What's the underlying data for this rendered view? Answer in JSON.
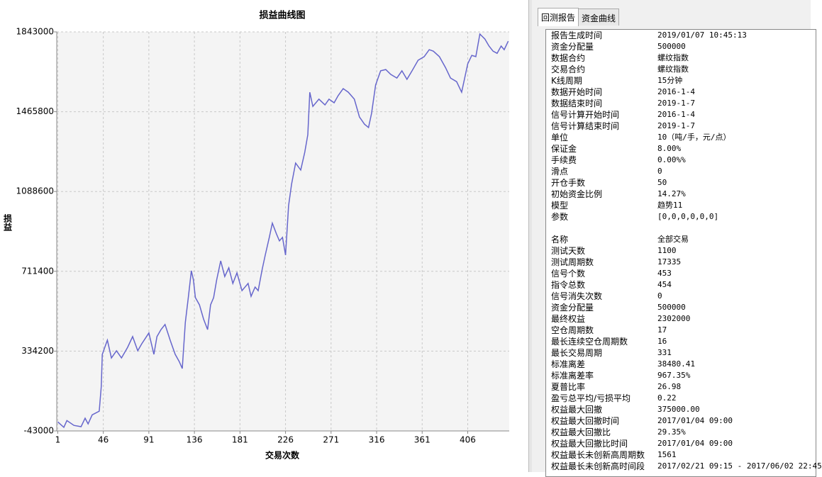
{
  "chart_data": {
    "type": "line",
    "title": "损益曲线图",
    "ylabel": "损益",
    "xlabel": "交易次数",
    "color": "#6666cc",
    "grid": true,
    "xlim": [
      0,
      447
    ],
    "xticks": [
      1,
      46,
      91,
      136,
      181,
      226,
      271,
      316,
      361,
      406
    ],
    "ylim": [
      -43000,
      1843000
    ],
    "yticks": [
      -43000,
      334200,
      711400,
      1088600,
      1465800,
      1843000
    ],
    "x": [
      1,
      7,
      10,
      17,
      24,
      28,
      31,
      35,
      42,
      44,
      45,
      47,
      50,
      54,
      59,
      64,
      70,
      75,
      80,
      84,
      91,
      96,
      99,
      103,
      107,
      112,
      117,
      121,
      124,
      127,
      130,
      133,
      135,
      137,
      141,
      145,
      149,
      152,
      155,
      158,
      162,
      166,
      170,
      174,
      178,
      183,
      189,
      192,
      196,
      199,
      203,
      206,
      210,
      213,
      217,
      220,
      223,
      226,
      229,
      232,
      236,
      241,
      245,
      248,
      250,
      253,
      259,
      265,
      269,
      274,
      278,
      283,
      288,
      294,
      299,
      304,
      308,
      311,
      315,
      320,
      325,
      330,
      336,
      341,
      346,
      351,
      357,
      363,
      368,
      372,
      378,
      384,
      389,
      395,
      400,
      403,
      406,
      410,
      414,
      418,
      423,
      427,
      431,
      435,
      439,
      442,
      446
    ],
    "values": [
      0,
      -26000,
      6000,
      -17000,
      -23000,
      17000,
      -10000,
      33000,
      50000,
      168000,
      318000,
      346000,
      386000,
      302000,
      336000,
      302000,
      352000,
      403000,
      336000,
      369000,
      420000,
      319000,
      403000,
      436000,
      460000,
      386000,
      319000,
      285000,
      252000,
      470000,
      587000,
      714000,
      671000,
      587000,
      553000,
      486000,
      436000,
      553000,
      587000,
      671000,
      761000,
      687000,
      728000,
      654000,
      704000,
      620000,
      654000,
      593000,
      637000,
      620000,
      721000,
      788000,
      872000,
      939000,
      889000,
      855000,
      872000,
      788000,
      1022000,
      1123000,
      1223000,
      1190000,
      1274000,
      1357000,
      1558000,
      1491000,
      1525000,
      1498000,
      1525000,
      1508000,
      1542000,
      1575000,
      1558000,
      1525000,
      1441000,
      1407000,
      1391000,
      1458000,
      1592000,
      1659000,
      1665000,
      1642000,
      1625000,
      1659000,
      1619000,
      1659000,
      1709000,
      1726000,
      1759000,
      1752000,
      1726000,
      1675000,
      1625000,
      1608000,
      1558000,
      1625000,
      1692000,
      1732000,
      1726000,
      1833000,
      1809000,
      1776000,
      1752000,
      1742000,
      1776000,
      1759000,
      1799000
    ]
  },
  "tabs": [
    "回测报告",
    "资金曲线"
  ],
  "report": {
    "sections": [
      [
        [
          "报告生成时间",
          "2019/01/07 10:45:13"
        ],
        [
          "资金分配量",
          "500000"
        ],
        [
          "数据合约",
          "螺纹指数"
        ],
        [
          "交易合约",
          "螺纹指数"
        ],
        [
          "K线周期",
          "15分钟"
        ],
        [
          "数据开始时间",
          "2016-1-4"
        ],
        [
          "数据结束时间",
          "2019-1-7"
        ],
        [
          "信号计算开始时间",
          "2016-1-4"
        ],
        [
          "信号计算结束时间",
          "2019-1-7"
        ],
        [
          "单位",
          "10（吨/手，元/点）"
        ],
        [
          "保证金",
          "8.00%"
        ],
        [
          "手续费",
          "0.00%%"
        ],
        [
          "滑点",
          "0"
        ],
        [
          "开仓手数",
          "50"
        ],
        [
          "初始资金比例",
          "14.27%"
        ],
        [
          "模型",
          "趋势11"
        ],
        [
          "参数",
          "[0,0,0,0,0,0]"
        ]
      ],
      [
        [
          "名称",
          "全部交易"
        ],
        [
          "测试天数",
          "1100"
        ],
        [
          "测试周期数",
          "17335"
        ],
        [
          "信号个数",
          "453"
        ],
        [
          "指令总数",
          "454"
        ],
        [
          "信号消失次数",
          "0"
        ],
        [
          "资金分配量",
          "500000"
        ],
        [
          "最终权益",
          "2302000"
        ],
        [
          "空仓周期数",
          "17"
        ],
        [
          "最长连续空仓周期数",
          "16"
        ],
        [
          "最长交易周期",
          "331"
        ],
        [
          "标准离差",
          "38480.41"
        ],
        [
          "标准离差率",
          "967.35%"
        ],
        [
          "夏普比率",
          "26.98"
        ],
        [
          "盈亏总平均/亏损平均",
          "0.22"
        ],
        [
          "权益最大回撤",
          "375000.00"
        ],
        [
          "权益最大回撤时间",
          "2017/01/04 09:00"
        ],
        [
          "权益最大回撤比",
          "29.35%"
        ],
        [
          "权益最大回撤比时间",
          "2017/01/04 09:00"
        ],
        [
          "权益最长未创新高周期数",
          "1561"
        ],
        [
          "权益最长未创新高时间段",
          "2017/02/21 09:15 - 2017/06/02 22:45"
        ]
      ]
    ]
  }
}
